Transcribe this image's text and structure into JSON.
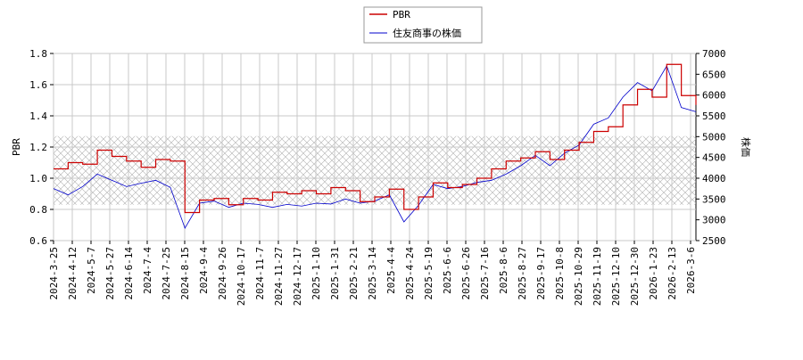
{
  "chart_data": {
    "type": "line",
    "title": "",
    "legend_position": "top-center",
    "grid": true,
    "band_hatched": true,
    "band": [
      0.83,
      1.27
    ],
    "y_left_label": "PBR",
    "y_right_label": "株価",
    "ylim_left": [
      0.6,
      1.8
    ],
    "ylim_right": [
      2500,
      7000
    ],
    "y_left_ticks": [
      "0.6",
      "0.8",
      "1.0",
      "1.2",
      "1.4",
      "1.6",
      "1.8"
    ],
    "y_right_ticks": [
      "2500",
      "3000",
      "3500",
      "4000",
      "4500",
      "5000",
      "5500",
      "6000",
      "6500",
      "7000"
    ],
    "x_ticks": [
      "2024-3-25",
      "2024-4-12",
      "2024-5-7",
      "2024-5-27",
      "2024-6-14",
      "2024-7-4",
      "2024-7-25",
      "2024-8-15",
      "2024-9-4",
      "2024-9-26",
      "2024-10-17",
      "2024-11-7",
      "2024-11-27",
      "2024-12-17",
      "2025-1-10",
      "2025-1-31",
      "2025-2-21",
      "2025-3-14",
      "2025-4-4",
      "2025-4-24",
      "2025-5-19",
      "2025-6-6",
      "2025-6-26",
      "2025-7-16",
      "2025-8-6",
      "2025-8-27",
      "2025-9-17",
      "2025-10-8",
      "2025-10-29",
      "2025-11-19",
      "2025-12-10",
      "2025-12-30",
      "2026-1-23",
      "2026-2-13",
      "2026-3-6"
    ],
    "series": [
      {
        "name": "PBR",
        "color": "#cc0000",
        "x": [
          0,
          1,
          2,
          3,
          4,
          5,
          6,
          7,
          8,
          9,
          10,
          11,
          12,
          13,
          14,
          15,
          16,
          17,
          18,
          19,
          20,
          21,
          22,
          23,
          24,
          25,
          26,
          27,
          28,
          29,
          30,
          31,
          32,
          33,
          34,
          35
        ],
        "values": [
          1.06,
          1.1,
          1.09,
          1.18,
          1.14,
          1.11,
          1.07,
          1.12,
          1.11,
          0.78,
          0.86,
          0.87,
          0.83,
          0.87,
          0.86,
          0.91,
          0.9,
          0.92,
          0.9,
          0.94,
          0.92,
          0.85,
          0.88,
          0.93,
          0.8,
          0.88,
          0.97,
          0.94,
          0.96,
          1.0,
          1.06,
          1.11,
          1.13,
          1.17,
          1.12,
          1.18
        ]
      },
      {
        "name": "住友商事の株価",
        "color": "#0000cc",
        "x": [
          0,
          1,
          2,
          3,
          4,
          5,
          6,
          7,
          8,
          9,
          10,
          11,
          12,
          13,
          14,
          15,
          16,
          17,
          18,
          19,
          20,
          21,
          22,
          23,
          24,
          25,
          26,
          27,
          28,
          29,
          30,
          31,
          32,
          33,
          34,
          35
        ],
        "values": [
          3750,
          3600,
          3800,
          4100,
          3950,
          3800,
          3880,
          3950,
          3780,
          2800,
          3400,
          3450,
          3300,
          3400,
          3370,
          3300,
          3370,
          3330,
          3400,
          3380,
          3500,
          3400,
          3450,
          3600,
          2950,
          3350,
          3850,
          3750,
          3800,
          3900,
          3950,
          4100,
          4300,
          4550,
          4300,
          4600
        ]
      }
    ],
    "tail": {
      "x": [
        35,
        36,
        37,
        38,
        39,
        40,
        41,
        42,
        43,
        44
      ],
      "pbr": [
        1.18,
        1.23,
        1.3,
        1.33,
        1.47,
        1.57,
        1.52,
        1.73,
        1.53,
        1.47
      ],
      "price": [
        4600,
        4800,
        5300,
        5450,
        5950,
        6300,
        6100,
        6700,
        5700,
        5600
      ]
    }
  }
}
